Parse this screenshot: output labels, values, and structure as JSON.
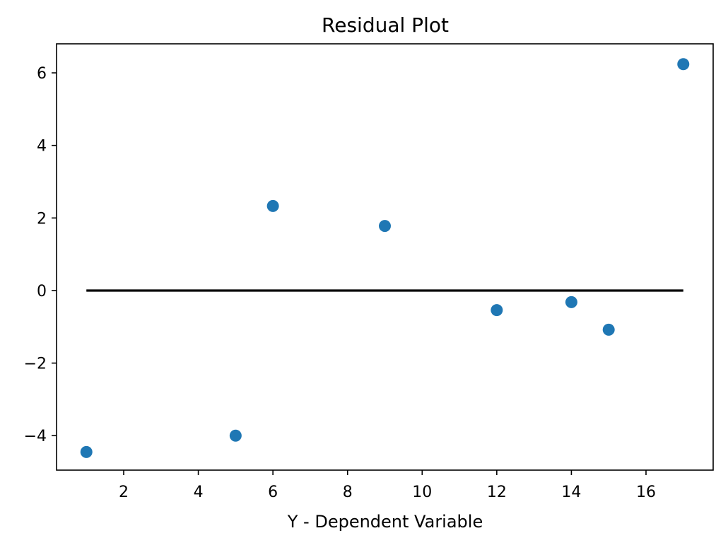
{
  "chart_data": {
    "type": "scatter",
    "title": "Residual Plot",
    "xlabel": "Y - Dependent Variable",
    "ylabel": "",
    "xlim": [
      0.2,
      17.8
    ],
    "ylim": [
      -4.95,
      6.8
    ],
    "xticks": [
      2,
      4,
      6,
      8,
      10,
      12,
      14,
      16
    ],
    "xtick_labels": [
      "2",
      "4",
      "6",
      "8",
      "10",
      "12",
      "14",
      "16"
    ],
    "yticks": [
      -4,
      -2,
      0,
      2,
      4,
      6
    ],
    "ytick_labels": [
      "−4",
      "−2",
      "0",
      "2",
      "4",
      "6"
    ],
    "grid": false,
    "points": [
      {
        "x": 1,
        "y": -4.45
      },
      {
        "x": 5,
        "y": -4.0
      },
      {
        "x": 6,
        "y": 2.33
      },
      {
        "x": 9,
        "y": 1.78
      },
      {
        "x": 12,
        "y": -0.54
      },
      {
        "x": 14,
        "y": -0.32
      },
      {
        "x": 15,
        "y": -1.08
      },
      {
        "x": 17,
        "y": 6.24
      }
    ],
    "reference_line": {
      "x": [
        1,
        17
      ],
      "y": [
        0,
        0
      ]
    },
    "marker_color": "#1f77b4",
    "line_color": "#000000"
  }
}
